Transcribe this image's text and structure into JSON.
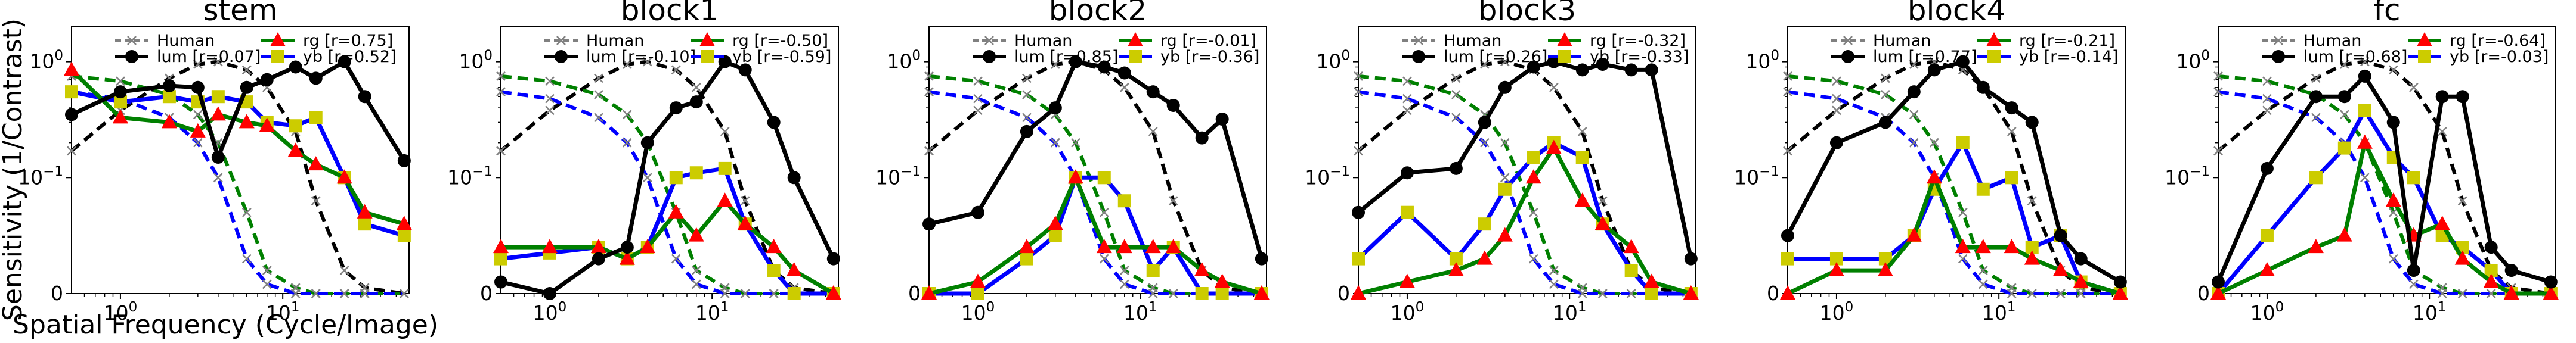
{
  "figure": {
    "ylabel": "Sensitivity (1/Contrast)",
    "xlabel": "Spatial Frequency (Cycle/Image)"
  },
  "style": {
    "lum_color": "#000000",
    "rg_color": "#ff0000",
    "yb_color": "#cccc00",
    "rg_line": "#008000",
    "yb_line": "#0000ff",
    "human_color": "#808080"
  },
  "chart_data": [
    {
      "type": "line",
      "title": "stem",
      "xscale": "log",
      "yscale": "symlog",
      "xlim": [
        0.5,
        60
      ],
      "ylim": [
        0,
        2
      ],
      "x": [
        0.5,
        1,
        2,
        3,
        4,
        6,
        8,
        12,
        16,
        24,
        32,
        56
      ],
      "human": {
        "lum": [
          0.17,
          0.38,
          0.72,
          0.95,
          1.0,
          0.85,
          0.6,
          0.25,
          0.08,
          0.02,
          0.005,
          0.0
        ],
        "rg": [
          0.75,
          0.68,
          0.52,
          0.35,
          0.2,
          0.07,
          0.02,
          0.005,
          0.0,
          0.0,
          0.0,
          0.0
        ],
        "yb": [
          0.55,
          0.48,
          0.33,
          0.2,
          0.1,
          0.03,
          0.008,
          0.0,
          0.0,
          0.0,
          0.0,
          0.0
        ]
      },
      "series": [
        {
          "name": "lum",
          "r_label": "lum [r=0.07]",
          "values": [
            0.35,
            0.55,
            0.62,
            0.6,
            0.15,
            0.6,
            0.7,
            0.9,
            0.72,
            1.0,
            0.5,
            0.14
          ]
        },
        {
          "name": "rg",
          "r_label": "rg    [r=0.75]",
          "values": [
            0.85,
            0.33,
            0.3,
            0.25,
            0.35,
            0.3,
            0.28,
            0.17,
            0.13,
            0.1,
            0.07,
            0.06
          ]
        },
        {
          "name": "yb",
          "r_label": "yb    [r=0.52]",
          "values": [
            0.55,
            0.45,
            0.5,
            0.45,
            0.5,
            0.45,
            0.3,
            0.28,
            0.33,
            0.1,
            0.06,
            0.05
          ]
        }
      ],
      "legend": {
        "human": "Human",
        "position": "top"
      }
    },
    {
      "type": "line",
      "title": "block1",
      "xscale": "log",
      "yscale": "symlog",
      "xlim": [
        0.5,
        60
      ],
      "ylim": [
        0,
        2
      ],
      "x": [
        0.5,
        1,
        2,
        3,
        4,
        6,
        8,
        12,
        16,
        24,
        32,
        56
      ],
      "human": {
        "lum": [
          0.17,
          0.38,
          0.72,
          0.95,
          1.0,
          0.85,
          0.6,
          0.25,
          0.08,
          0.02,
          0.005,
          0.0
        ],
        "rg": [
          0.75,
          0.68,
          0.52,
          0.35,
          0.2,
          0.07,
          0.02,
          0.005,
          0.0,
          0.0,
          0.0,
          0.0
        ],
        "yb": [
          0.55,
          0.48,
          0.33,
          0.2,
          0.1,
          0.03,
          0.008,
          0.0,
          0.0,
          0.0,
          0.0,
          0.0
        ]
      },
      "series": [
        {
          "name": "lum",
          "r_label": "lum [r=-0.10]",
          "values": [
            0.01,
            0.0,
            0.03,
            0.04,
            0.2,
            0.4,
            0.45,
            1.0,
            0.85,
            0.3,
            0.1,
            0.03
          ]
        },
        {
          "name": "rg",
          "r_label": "rg    [r=-0.50]",
          "values": [
            0.04,
            0.04,
            0.04,
            0.03,
            0.04,
            0.07,
            0.05,
            0.08,
            0.06,
            0.04,
            0.02,
            0.0
          ]
        },
        {
          "name": "yb",
          "r_label": "yb    [r=-0.59]",
          "values": [
            0.03,
            0.035,
            0.04,
            0.03,
            0.04,
            0.1,
            0.11,
            0.12,
            0.06,
            0.02,
            0.0,
            0.0
          ]
        }
      ],
      "legend": {
        "human": "Human",
        "position": "top"
      }
    },
    {
      "type": "line",
      "title": "block2",
      "xscale": "log",
      "yscale": "symlog",
      "xlim": [
        0.5,
        60
      ],
      "ylim": [
        0,
        2
      ],
      "x": [
        0.5,
        1,
        2,
        3,
        4,
        6,
        8,
        12,
        16,
        24,
        32,
        56
      ],
      "human": {
        "lum": [
          0.17,
          0.38,
          0.72,
          0.95,
          1.0,
          0.85,
          0.6,
          0.25,
          0.08,
          0.02,
          0.005,
          0.0
        ],
        "rg": [
          0.75,
          0.68,
          0.52,
          0.35,
          0.2,
          0.07,
          0.02,
          0.005,
          0.0,
          0.0,
          0.0,
          0.0
        ],
        "yb": [
          0.55,
          0.48,
          0.33,
          0.2,
          0.1,
          0.03,
          0.008,
          0.0,
          0.0,
          0.0,
          0.0,
          0.0
        ]
      },
      "series": [
        {
          "name": "lum",
          "r_label": "lum [r=0.85]",
          "values": [
            0.06,
            0.07,
            0.25,
            0.4,
            1.0,
            0.9,
            0.8,
            0.55,
            0.42,
            0.22,
            0.32,
            0.03
          ]
        },
        {
          "name": "rg",
          "r_label": "rg    [r=-0.01]",
          "values": [
            0.0,
            0.01,
            0.04,
            0.06,
            0.1,
            0.04,
            0.04,
            0.04,
            0.04,
            0.02,
            0.01,
            0.0
          ]
        },
        {
          "name": "yb",
          "r_label": "yb    [r=-0.36]",
          "values": [
            0.0,
            0.0,
            0.03,
            0.05,
            0.1,
            0.1,
            0.08,
            0.02,
            0.04,
            0.0,
            0.0,
            0.0
          ]
        }
      ],
      "legend": {
        "human": "Human",
        "position": "top"
      }
    },
    {
      "type": "line",
      "title": "block3",
      "xscale": "log",
      "yscale": "symlog",
      "xlim": [
        0.5,
        60
      ],
      "ylim": [
        0,
        2
      ],
      "x": [
        0.5,
        1,
        2,
        3,
        4,
        6,
        8,
        12,
        16,
        24,
        32,
        56
      ],
      "human": {
        "lum": [
          0.17,
          0.38,
          0.72,
          0.95,
          1.0,
          0.85,
          0.6,
          0.25,
          0.08,
          0.02,
          0.005,
          0.0
        ],
        "rg": [
          0.75,
          0.68,
          0.52,
          0.35,
          0.2,
          0.07,
          0.02,
          0.005,
          0.0,
          0.0,
          0.0,
          0.0
        ],
        "yb": [
          0.55,
          0.48,
          0.33,
          0.2,
          0.1,
          0.03,
          0.008,
          0.0,
          0.0,
          0.0,
          0.0,
          0.0
        ]
      },
      "series": [
        {
          "name": "lum",
          "r_label": "lum [r=0.26]",
          "values": [
            0.07,
            0.11,
            0.12,
            0.3,
            0.6,
            0.9,
            1.0,
            0.85,
            0.95,
            0.85,
            0.85,
            0.03
          ]
        },
        {
          "name": "rg",
          "r_label": "rg    [r=-0.32]",
          "values": [
            0.0,
            0.01,
            0.02,
            0.03,
            0.05,
            0.1,
            0.18,
            0.08,
            0.06,
            0.04,
            0.01,
            0.0
          ]
        },
        {
          "name": "yb",
          "r_label": "yb    [r=-0.33]",
          "values": [
            0.03,
            0.07,
            0.03,
            0.06,
            0.09,
            0.15,
            0.2,
            0.15,
            0.06,
            0.02,
            0.0,
            0.0
          ]
        }
      ],
      "legend": {
        "human": "Human",
        "position": "top"
      }
    },
    {
      "type": "line",
      "title": "block4",
      "xscale": "log",
      "yscale": "symlog",
      "xlim": [
        0.5,
        60
      ],
      "ylim": [
        0,
        2
      ],
      "x": [
        0.5,
        1,
        2,
        3,
        4,
        6,
        8,
        12,
        16,
        24,
        32,
        56
      ],
      "human": {
        "lum": [
          0.17,
          0.38,
          0.72,
          0.95,
          1.0,
          0.85,
          0.6,
          0.25,
          0.08,
          0.02,
          0.005,
          0.0
        ],
        "rg": [
          0.75,
          0.68,
          0.52,
          0.35,
          0.2,
          0.07,
          0.02,
          0.005,
          0.0,
          0.0,
          0.0,
          0.0
        ],
        "yb": [
          0.55,
          0.48,
          0.33,
          0.2,
          0.1,
          0.03,
          0.008,
          0.0,
          0.0,
          0.0,
          0.0,
          0.0
        ]
      },
      "series": [
        {
          "name": "lum",
          "r_label": "lum [r=0.77]",
          "values": [
            0.05,
            0.2,
            0.3,
            0.55,
            0.85,
            1.0,
            0.6,
            0.4,
            0.3,
            0.05,
            0.03,
            0.01
          ]
        },
        {
          "name": "rg",
          "r_label": "rg    [r=-0.21]",
          "values": [
            0.0,
            0.02,
            0.02,
            0.05,
            0.1,
            0.04,
            0.04,
            0.04,
            0.03,
            0.02,
            0.01,
            0.0
          ]
        },
        {
          "name": "yb",
          "r_label": "yb    [r=-0.14]",
          "values": [
            0.03,
            0.03,
            0.03,
            0.05,
            0.09,
            0.2,
            0.09,
            0.1,
            0.04,
            0.05,
            0.01,
            0.0
          ]
        }
      ],
      "legend": {
        "human": "Human",
        "position": "top"
      }
    },
    {
      "type": "line",
      "title": "fc",
      "xscale": "log",
      "yscale": "symlog",
      "xlim": [
        0.5,
        60
      ],
      "ylim": [
        0,
        2
      ],
      "x": [
        0.5,
        1,
        2,
        3,
        4,
        6,
        8,
        12,
        16,
        24,
        32,
        56
      ],
      "human": {
        "lum": [
          0.17,
          0.38,
          0.72,
          0.95,
          1.0,
          0.85,
          0.6,
          0.25,
          0.08,
          0.02,
          0.005,
          0.0
        ],
        "rg": [
          0.75,
          0.68,
          0.52,
          0.35,
          0.2,
          0.07,
          0.02,
          0.005,
          0.0,
          0.0,
          0.0,
          0.0
        ],
        "yb": [
          0.55,
          0.48,
          0.33,
          0.2,
          0.1,
          0.03,
          0.008,
          0.0,
          0.0,
          0.0,
          0.0,
          0.0
        ]
      },
      "series": [
        {
          "name": "lum",
          "r_label": "lum [r=0.68]",
          "values": [
            0.01,
            0.12,
            0.5,
            0.5,
            0.75,
            0.3,
            0.02,
            0.5,
            0.5,
            0.04,
            0.02,
            0.01
          ]
        },
        {
          "name": "rg",
          "r_label": "rg    [r=-0.64]",
          "values": [
            0.0,
            0.02,
            0.04,
            0.05,
            0.2,
            0.08,
            0.05,
            0.06,
            0.03,
            0.01,
            0.0,
            0.0
          ]
        },
        {
          "name": "yb",
          "r_label": "yb    [r=-0.03]",
          "values": [
            0.0,
            0.05,
            0.1,
            0.18,
            0.38,
            0.15,
            0.1,
            0.05,
            0.04,
            0.02,
            0.0,
            0.0
          ]
        }
      ],
      "legend": {
        "human": "Human",
        "position": "top"
      }
    }
  ]
}
